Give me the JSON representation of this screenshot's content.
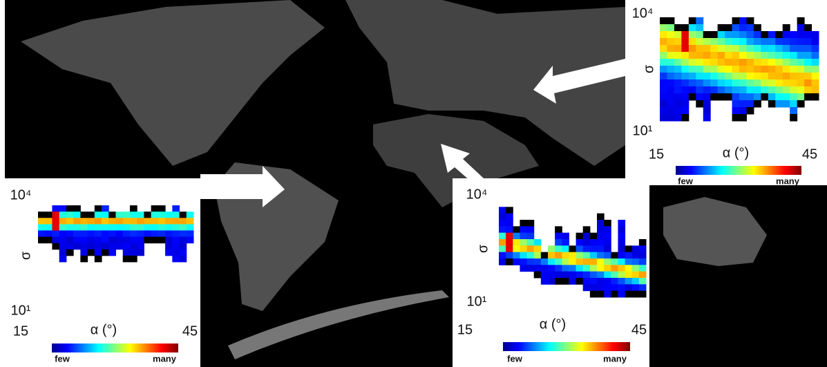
{
  "insets": [
    {
      "y_tick_top": "10⁴",
      "y_tick_bottom": "10¹",
      "y_label": "σ",
      "x_tick_left": "15",
      "x_tick_right": "45",
      "x_label": "α (°)",
      "colorbar_low": "few",
      "colorbar_high": "many"
    },
    {
      "y_tick_top": "10⁴",
      "y_tick_bottom": "10¹",
      "y_label": "σ",
      "x_tick_left": "15",
      "x_tick_right": "45",
      "x_label": "α (°)",
      "colorbar_low": "few",
      "colorbar_high": "many"
    },
    {
      "y_tick_top": "10⁴",
      "y_tick_bottom": "10¹",
      "y_label": "σ",
      "x_tick_left": "15",
      "x_tick_right": "45",
      "x_label": "α (°)",
      "colorbar_low": "few",
      "colorbar_high": "many"
    }
  ]
}
